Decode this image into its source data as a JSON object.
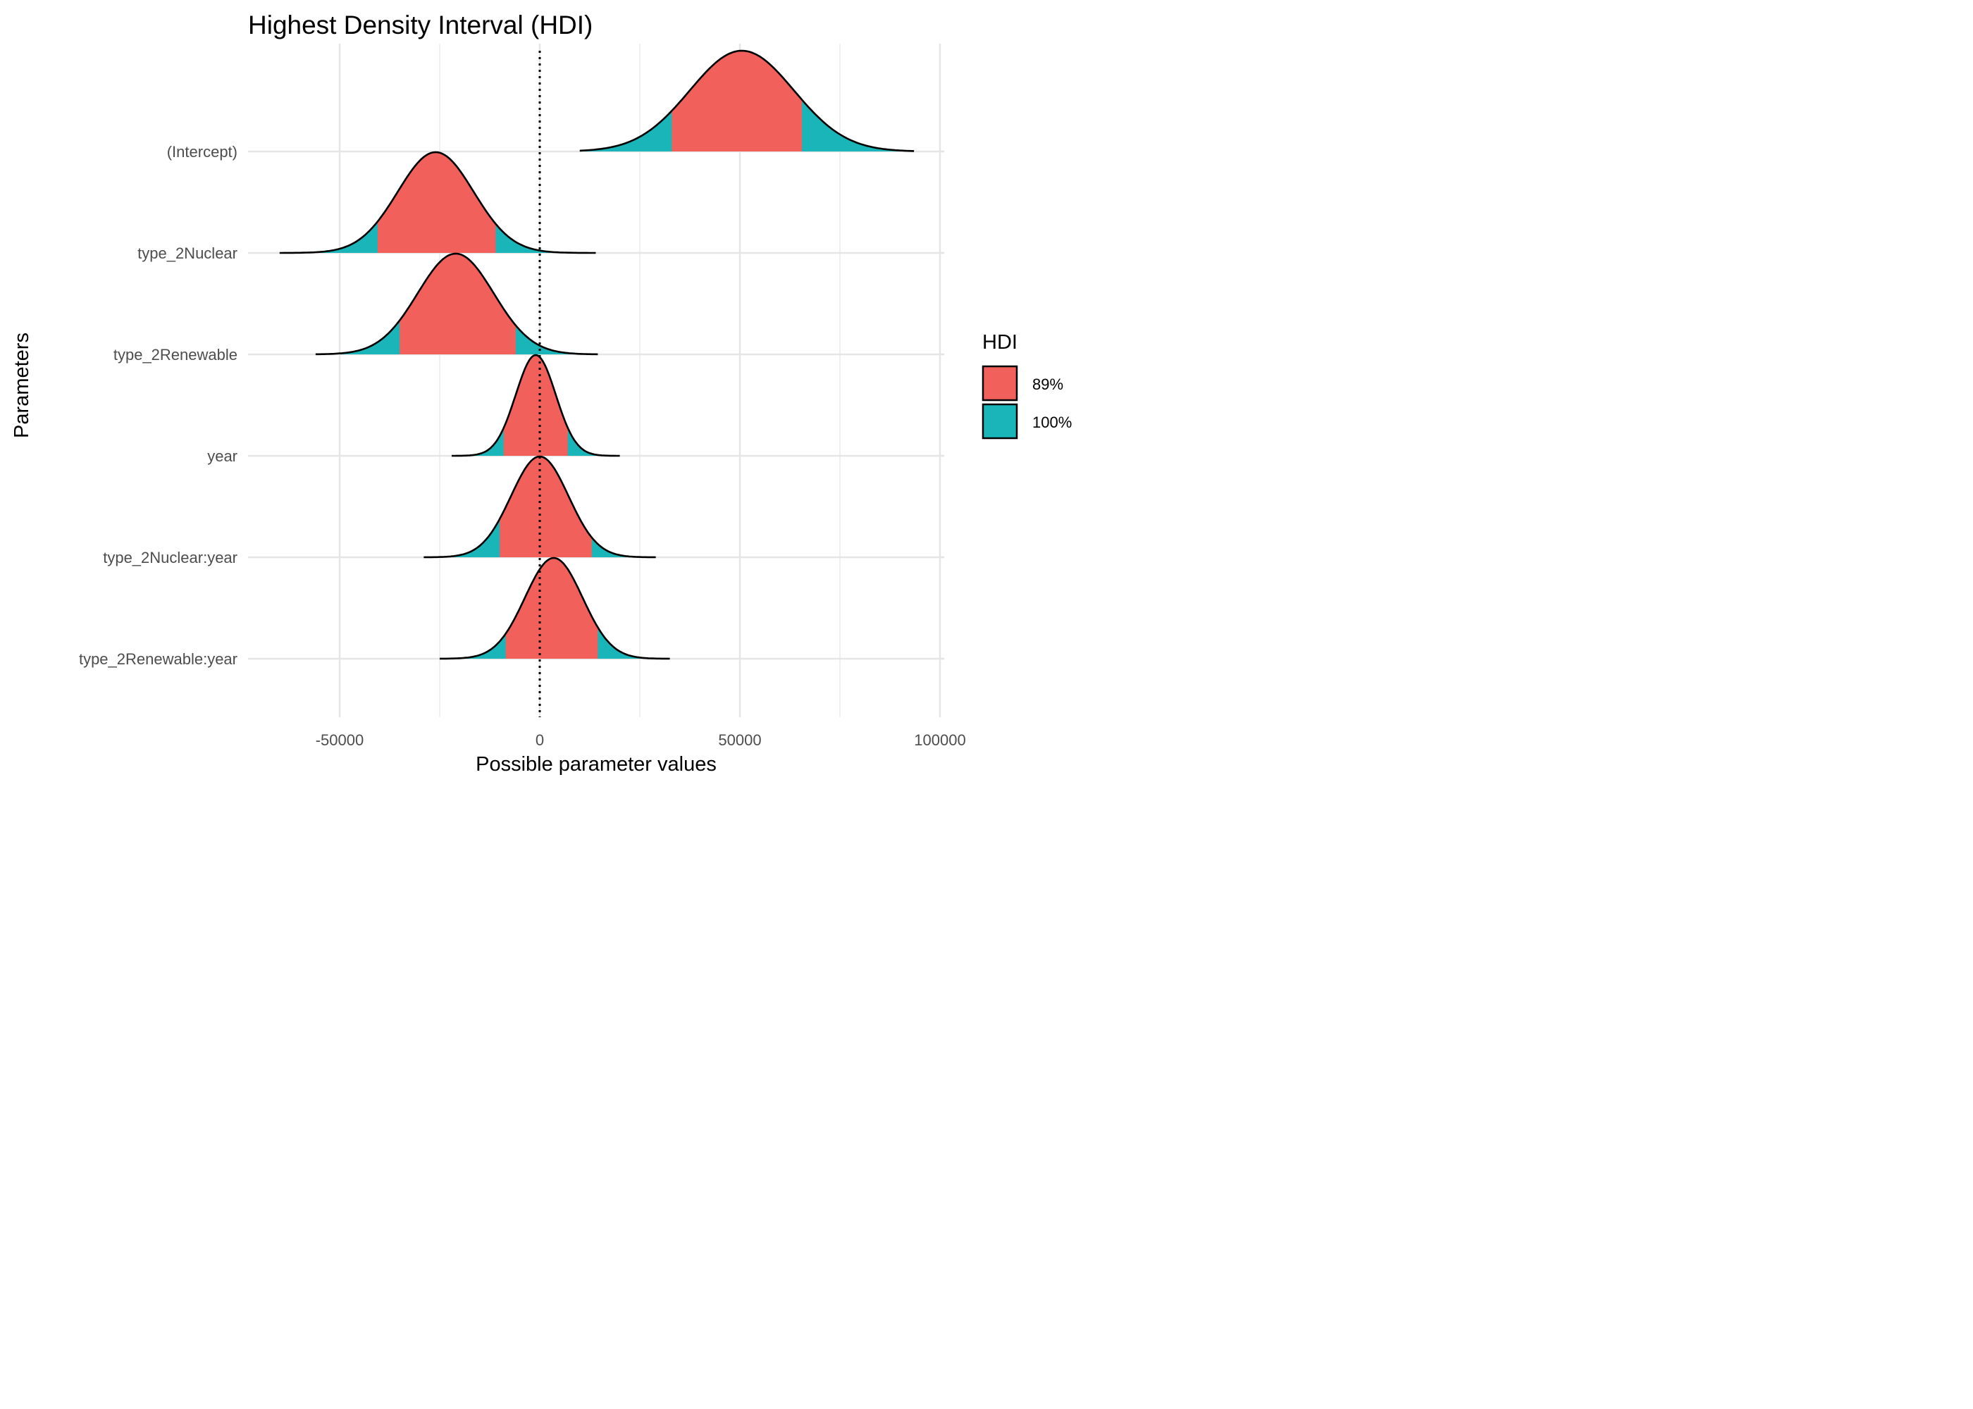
{
  "chart_data": {
    "type": "area",
    "title": "Highest Density Interval (HDI)",
    "xlabel": "Possible parameter values",
    "ylabel": "Parameters",
    "xlim": [
      -73000,
      101000
    ],
    "x_ticks": [
      -50000,
      0,
      50000,
      100000
    ],
    "x_tick_labels": [
      "-50000",
      "0",
      "50000",
      "100000"
    ],
    "reference_line": {
      "x": 0,
      "style": "dotted"
    },
    "grid": true,
    "legend": {
      "title": "HDI",
      "position": "right",
      "entries": [
        {
          "label": "89%",
          "color": "#F8766D"
        },
        {
          "label": "100%",
          "color": "#00BFC4"
        }
      ]
    },
    "colors": {
      "hdi89": "#F2605B",
      "hdi100": "#1AB5B8",
      "outline": "#000000",
      "grid": "#E5E5E5"
    },
    "series": [
      {
        "name": "(Intercept)",
        "min": 10000,
        "max": 93500,
        "mode": 50500,
        "hdi89": [
          33000,
          65500
        ],
        "sd": 13000
      },
      {
        "name": "type_2Nuclear",
        "min": -65000,
        "max": 14000,
        "mode": -26000,
        "hdi89": [
          -40500,
          -11000
        ],
        "sd": 9500
      },
      {
        "name": "type_2Renewable",
        "min": -56000,
        "max": 14500,
        "mode": -21000,
        "hdi89": [
          -35000,
          -6000
        ],
        "sd": 9500
      },
      {
        "name": "year",
        "min": -22000,
        "max": 20000,
        "mode": -1000,
        "hdi89": [
          -9000,
          7000
        ],
        "sd": 5000
      },
      {
        "name": "type_2Nuclear:year",
        "min": -29000,
        "max": 29000,
        "mode": 0,
        "hdi89": [
          -10000,
          13000
        ],
        "sd": 7200
      },
      {
        "name": "type_2Renewable:year",
        "min": -25000,
        "max": 32500,
        "mode": 3500,
        "hdi89": [
          -8500,
          14500
        ],
        "sd": 7200
      }
    ]
  }
}
